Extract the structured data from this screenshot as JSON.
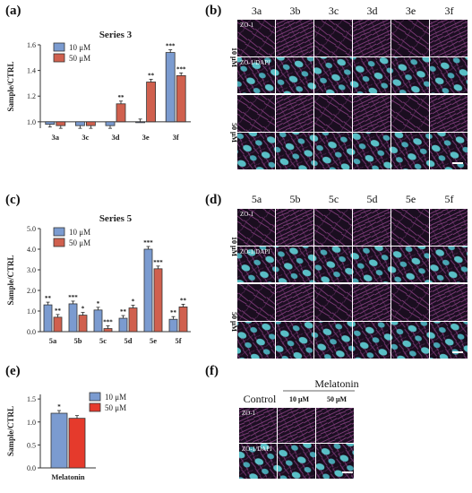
{
  "panels": {
    "a": "(a)",
    "b": "(b)",
    "c": "(c)",
    "d": "(d)",
    "e": "(e)",
    "f": "(f)"
  },
  "colors": {
    "c10": "#7b9bd0",
    "c50": "#d0604e",
    "c50e": "#e53a2c",
    "edge": "#333333"
  },
  "chart_data": [
    {
      "id": "a",
      "type": "bar",
      "title": "Series 3",
      "ylabel": "Sample/CTRL",
      "ylim": [
        0.95,
        1.6
      ],
      "yticks": [
        "1.0",
        "1.2",
        "1.4",
        "1.6"
      ],
      "categories": [
        "3a",
        "3c",
        "3d",
        "3e",
        "3f"
      ],
      "series": [
        {
          "name": "10 μM",
          "values": [
            0.98,
            0.97,
            0.97,
            1.0,
            1.54
          ]
        },
        {
          "name": "50 μM",
          "values": [
            0.97,
            0.97,
            1.14,
            1.31,
            1.36
          ]
        }
      ],
      "significance": [
        {
          "series": 0,
          "index": 4,
          "text": "***"
        },
        {
          "series": 1,
          "index": 2,
          "text": "**"
        },
        {
          "series": 1,
          "index": 3,
          "text": "**"
        },
        {
          "series": 1,
          "index": 4,
          "text": "***"
        }
      ]
    },
    {
      "id": "c",
      "type": "bar",
      "title": "Series 5",
      "ylabel": "Sample/CTRL",
      "ylim": [
        0,
        5
      ],
      "yticks": [
        "0.0",
        "1.0",
        "2.0",
        "3.0",
        "4.0",
        "5.0"
      ],
      "categories": [
        "5a",
        "5b",
        "5c",
        "5d",
        "5e",
        "5f"
      ],
      "series": [
        {
          "name": "10 μM",
          "values": [
            1.3,
            1.35,
            1.05,
            0.65,
            4.0,
            0.6
          ]
        },
        {
          "name": "50 μM",
          "values": [
            0.7,
            0.8,
            0.15,
            1.15,
            3.05,
            1.2
          ]
        }
      ],
      "significance": [
        {
          "series": 0,
          "index": 0,
          "text": "**"
        },
        {
          "series": 1,
          "index": 0,
          "text": "**"
        },
        {
          "series": 0,
          "index": 1,
          "text": "***"
        },
        {
          "series": 1,
          "index": 1,
          "text": "*"
        },
        {
          "series": 0,
          "index": 2,
          "text": "*"
        },
        {
          "series": 1,
          "index": 2,
          "text": "***"
        },
        {
          "series": 0,
          "index": 3,
          "text": "**"
        },
        {
          "series": 1,
          "index": 3,
          "text": "*"
        },
        {
          "series": 0,
          "index": 4,
          "text": "***"
        },
        {
          "series": 1,
          "index": 4,
          "text": "***"
        },
        {
          "series": 0,
          "index": 5,
          "text": "**"
        },
        {
          "series": 1,
          "index": 5,
          "text": "**"
        }
      ]
    },
    {
      "id": "e",
      "type": "bar",
      "ylabel": "Sample/CTRL",
      "ylim": [
        0,
        1.6
      ],
      "yticks": [
        "0.0",
        "0.5",
        "1.0",
        "1.5"
      ],
      "categories": [
        "Melatonin"
      ],
      "series": [
        {
          "name": "10 μM",
          "values": [
            1.19
          ]
        },
        {
          "name": "50 μM",
          "values": [
            1.08
          ]
        }
      ],
      "significance": [
        {
          "series": 0,
          "index": 0,
          "text": "*"
        }
      ]
    }
  ],
  "micrographs": {
    "b": {
      "columns": [
        "3a",
        "3b",
        "3c",
        "3d",
        "3e",
        "3f"
      ],
      "rows": [
        "10 μM",
        "50 μM"
      ],
      "stain1": "ZO-1",
      "stain2": "ZO-1/DAPI"
    },
    "d": {
      "columns": [
        "5a",
        "5b",
        "5c",
        "5d",
        "5e",
        "5f"
      ],
      "rows": [
        "10 μM",
        "50 μM"
      ],
      "stain1": "ZO-1",
      "stain2": "ZO-1/DAPI"
    },
    "f": {
      "header": "Melatonin",
      "control": "Control",
      "conc1": "10 μM",
      "conc2": "50 μM",
      "stain1": "ZO-1",
      "stain2": "ZO-1/DAPI"
    }
  }
}
